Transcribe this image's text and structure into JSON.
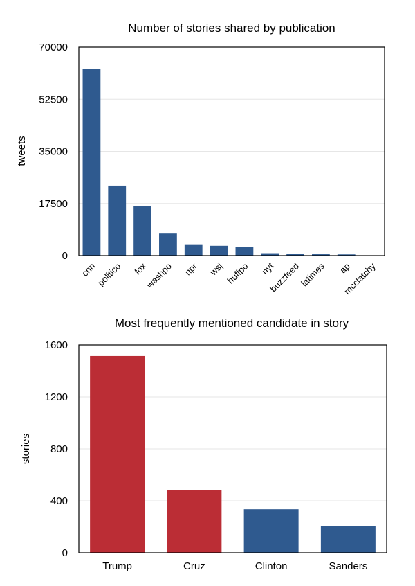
{
  "chart_data": [
    {
      "type": "bar",
      "title": "Number of stories shared by publication",
      "xlabel": "",
      "ylabel": "tweets",
      "ylim": [
        0,
        70000
      ],
      "yticks": [
        "0",
        "17500",
        "35000",
        "52500",
        "70000"
      ],
      "categories": [
        "cnn",
        "politico",
        "fox",
        "washpo",
        "npr",
        "wsj",
        "huffpo",
        "nyt",
        "buzzfeed",
        "latimes",
        "ap",
        "mcclatchy"
      ],
      "values": [
        62700,
        23500,
        16600,
        7400,
        3800,
        3300,
        3000,
        800,
        500,
        450,
        400,
        100
      ],
      "colors": [
        "#2f5a8f",
        "#2f5a8f",
        "#2f5a8f",
        "#2f5a8f",
        "#2f5a8f",
        "#2f5a8f",
        "#2f5a8f",
        "#2f5a8f",
        "#2f5a8f",
        "#2f5a8f",
        "#2f5a8f",
        "#2f5a8f"
      ],
      "grid": true,
      "legend": "none"
    },
    {
      "type": "bar",
      "title": "Most frequently mentioned candidate in story",
      "xlabel": "",
      "ylabel": "stories",
      "ylim": [
        0,
        1600
      ],
      "yticks": [
        "0",
        "400",
        "800",
        "1200",
        "1600"
      ],
      "categories": [
        "Trump",
        "Cruz",
        "Clinton",
        "Sanders"
      ],
      "values": [
        1515,
        480,
        335,
        205
      ],
      "colors": [
        "#bb2d35",
        "#bb2d35",
        "#2f5a8f",
        "#2f5a8f"
      ],
      "grid": true,
      "legend": "none"
    }
  ]
}
